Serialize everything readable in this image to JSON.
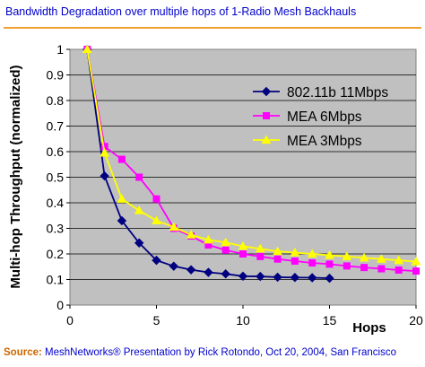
{
  "chart_data": {
    "type": "line",
    "title": "Bandwidth Degradation over multiple hops of 1-Radio Mesh Backhauls",
    "xlabel": "Hops",
    "ylabel": "Multi-hop Throughput (normalized)",
    "xlim": [
      0,
      20
    ],
    "ylim": [
      0,
      1
    ],
    "xticks": [
      0,
      5,
      10,
      15,
      20
    ],
    "yticks": [
      0,
      0.1,
      0.2,
      0.3,
      0.4,
      0.5,
      0.6,
      0.7,
      0.8,
      0.9,
      1
    ],
    "grid": "horizontal",
    "legend_position": "top-right",
    "background": "#c0c0c0",
    "series": [
      {
        "name": "802.11b 11Mbps",
        "color": "#000080",
        "marker": "diamond",
        "x": [
          1,
          2,
          3,
          4,
          5,
          6,
          7,
          8,
          9,
          10,
          11,
          12,
          13,
          14,
          15
        ],
        "y": [
          1.0,
          0.505,
          0.33,
          0.243,
          0.175,
          0.152,
          0.138,
          0.128,
          0.122,
          0.113,
          0.112,
          0.109,
          0.108,
          0.107,
          0.105
        ]
      },
      {
        "name": "MEA 6Mbps",
        "color": "#ff00ff",
        "marker": "square",
        "x": [
          1,
          2,
          3,
          4,
          5,
          6,
          7,
          8,
          9,
          10,
          11,
          12,
          13,
          14,
          15,
          16,
          17,
          18,
          19,
          20
        ],
        "y": [
          1.0,
          0.62,
          0.57,
          0.5,
          0.415,
          0.3,
          0.27,
          0.235,
          0.215,
          0.2,
          0.19,
          0.18,
          0.172,
          0.165,
          0.16,
          0.153,
          0.147,
          0.142,
          0.137,
          0.133
        ]
      },
      {
        "name": "MEA 3Mbps",
        "color": "#ffff00",
        "marker": "triangle",
        "x": [
          1,
          2,
          3,
          4,
          5,
          6,
          7,
          8,
          9,
          10,
          11,
          12,
          13,
          14,
          15,
          16,
          17,
          18,
          19,
          20
        ],
        "y": [
          1.0,
          0.595,
          0.415,
          0.37,
          0.33,
          0.305,
          0.275,
          0.255,
          0.245,
          0.23,
          0.22,
          0.21,
          0.205,
          0.2,
          0.195,
          0.19,
          0.185,
          0.18,
          0.175,
          0.17
        ]
      }
    ]
  },
  "footer": {
    "source_label": "Source:",
    "source_text": " MeshNetworks® Presentation by Rick Rotondo, Oct 20, 2004, San Francisco"
  }
}
